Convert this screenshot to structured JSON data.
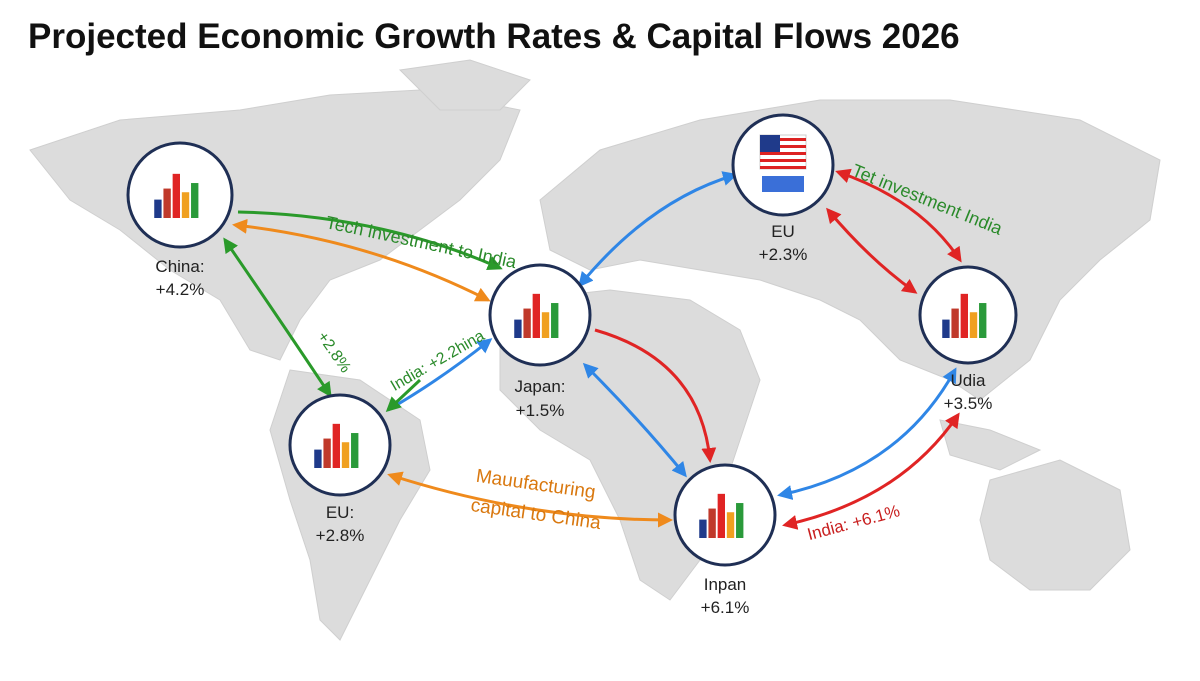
{
  "title": "Projected Economic Growth Rates & Capital Flows 2026",
  "nodes": [
    {
      "label": "China:",
      "value": "+4.2%"
    },
    {
      "label": "Japan:",
      "value": "+1.5%"
    },
    {
      "label": "EU",
      "value": "+2.3%"
    },
    {
      "label": "Udia",
      "value": "+3.5%"
    },
    {
      "label": "EU:",
      "value": "+2.8%"
    },
    {
      "label": "Inpan",
      "value": "+6.1%"
    }
  ],
  "flows": [
    {
      "label": "Tech investment to India"
    },
    {
      "label": "Tet investment India"
    },
    {
      "label": [
        "Mauufacturing",
        "capital to China"
      ]
    },
    {
      "label": "India: +6.1%"
    },
    {
      "label": "India: +2.2hina"
    },
    {
      "label": "+2.8%"
    }
  ]
}
